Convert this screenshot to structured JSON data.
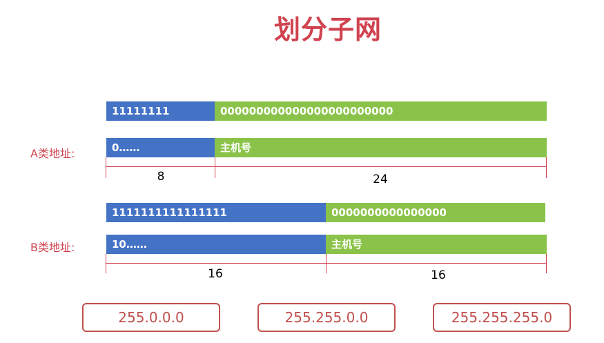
{
  "title": "划分子网",
  "classA": {
    "label": "A类地址:",
    "mask_net": "11111111",
    "mask_host": "000000000000000000000000",
    "addr_net": "0……",
    "addr_host": "主机号",
    "net_bits": "8",
    "host_bits": "24"
  },
  "classB": {
    "label": "B类地址:",
    "mask_net": "1111111111111111",
    "mask_host": "0000000000000000",
    "addr_net": "10……",
    "addr_host": "主机号",
    "net_bits": "16",
    "host_bits": "16"
  },
  "masks": [
    "255.0.0.0",
    "255.255.0.0",
    "255.255.255.0"
  ],
  "colors": {
    "network": "#4473c6",
    "host": "#8bc34a",
    "accent": "#d0424f"
  }
}
